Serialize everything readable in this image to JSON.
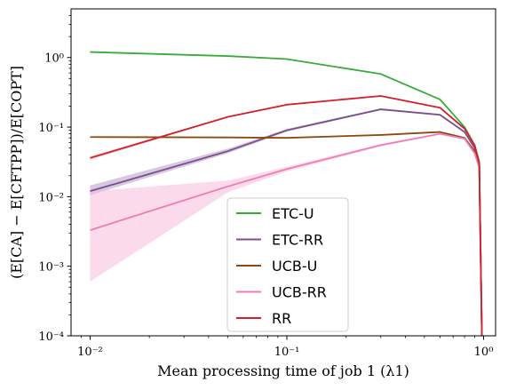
{
  "chart_data": {
    "type": "line",
    "xscale": "log",
    "yscale": "log",
    "xlim": [
      0.008,
      1.15
    ],
    "ylim": [
      0.0001,
      5
    ],
    "xlabel": "Mean processing time of job 1 (λ1)",
    "ylabel": "(E[CA] − E[CFTPP])/E[COPT]",
    "x_ticks": [
      {
        "value": 0.01,
        "label": "10⁻²"
      },
      {
        "value": 0.1,
        "label": "10⁻¹"
      },
      {
        "value": 1,
        "label": "10⁰"
      }
    ],
    "y_ticks": [
      {
        "value": 0.0001,
        "label": "10⁻⁴"
      },
      {
        "value": 0.001,
        "label": "10⁻³"
      },
      {
        "value": 0.01,
        "label": "10⁻²"
      },
      {
        "value": 0.1,
        "label": "10⁻¹"
      },
      {
        "value": 1,
        "label": "10⁰"
      }
    ],
    "legend_position": "lower-center",
    "series": [
      {
        "name": "ETC-U",
        "color": "#3aaa3a",
        "x": [
          0.01,
          0.05,
          0.1,
          0.3,
          0.6,
          0.8,
          0.9,
          0.95,
          0.98
        ],
        "y": [
          1.2,
          1.05,
          0.95,
          0.58,
          0.25,
          0.1,
          0.055,
          0.032,
          0.0001
        ]
      },
      {
        "name": "ETC-RR",
        "color": "#7b4f8c",
        "band_color": "#b49ac8",
        "x": [
          0.01,
          0.05,
          0.1,
          0.3,
          0.6,
          0.8,
          0.9,
          0.95,
          0.98
        ],
        "y": [
          0.012,
          0.045,
          0.09,
          0.18,
          0.15,
          0.085,
          0.05,
          0.03,
          0.0001
        ],
        "lower": [
          0.0105,
          0.042,
          0.086,
          0.175,
          0.146,
          0.083,
          0.049,
          0.029,
          0.0001
        ],
        "upper": [
          0.0145,
          0.049,
          0.094,
          0.186,
          0.155,
          0.088,
          0.052,
          0.031,
          0.0001
        ]
      },
      {
        "name": "UCB-U",
        "color": "#8b4a12",
        "x": [
          0.01,
          0.05,
          0.1,
          0.3,
          0.6,
          0.8,
          0.9,
          0.95,
          0.98
        ],
        "y": [
          0.072,
          0.071,
          0.07,
          0.077,
          0.085,
          0.07,
          0.045,
          0.028,
          0.0001
        ]
      },
      {
        "name": "UCB-RR",
        "color": "#f07cb6",
        "band_color": "#f7bcda",
        "x": [
          0.01,
          0.05,
          0.1,
          0.3,
          0.6,
          0.8,
          0.9,
          0.95,
          0.98
        ],
        "y": [
          0.0033,
          0.014,
          0.025,
          0.055,
          0.08,
          0.068,
          0.042,
          0.026,
          0.0001
        ],
        "lower": [
          0.0006,
          0.0115,
          0.023,
          0.053,
          0.078,
          0.066,
          0.041,
          0.025,
          0.0001
        ],
        "upper": [
          0.012,
          0.017,
          0.027,
          0.057,
          0.082,
          0.07,
          0.043,
          0.027,
          0.0001
        ]
      },
      {
        "name": "RR",
        "color": "#d0202c",
        "band_color": "#f2a6aa",
        "x": [
          0.01,
          0.05,
          0.1,
          0.3,
          0.6,
          0.8,
          0.9,
          0.95,
          0.98
        ],
        "y": [
          0.036,
          0.14,
          0.21,
          0.28,
          0.19,
          0.095,
          0.055,
          0.03,
          0.0001
        ],
        "lower": [
          0.034,
          0.137,
          0.207,
          0.276,
          0.187,
          0.093,
          0.054,
          0.029,
          0.0001
        ],
        "upper": [
          0.038,
          0.143,
          0.213,
          0.284,
          0.193,
          0.097,
          0.056,
          0.031,
          0.0001
        ]
      }
    ]
  }
}
